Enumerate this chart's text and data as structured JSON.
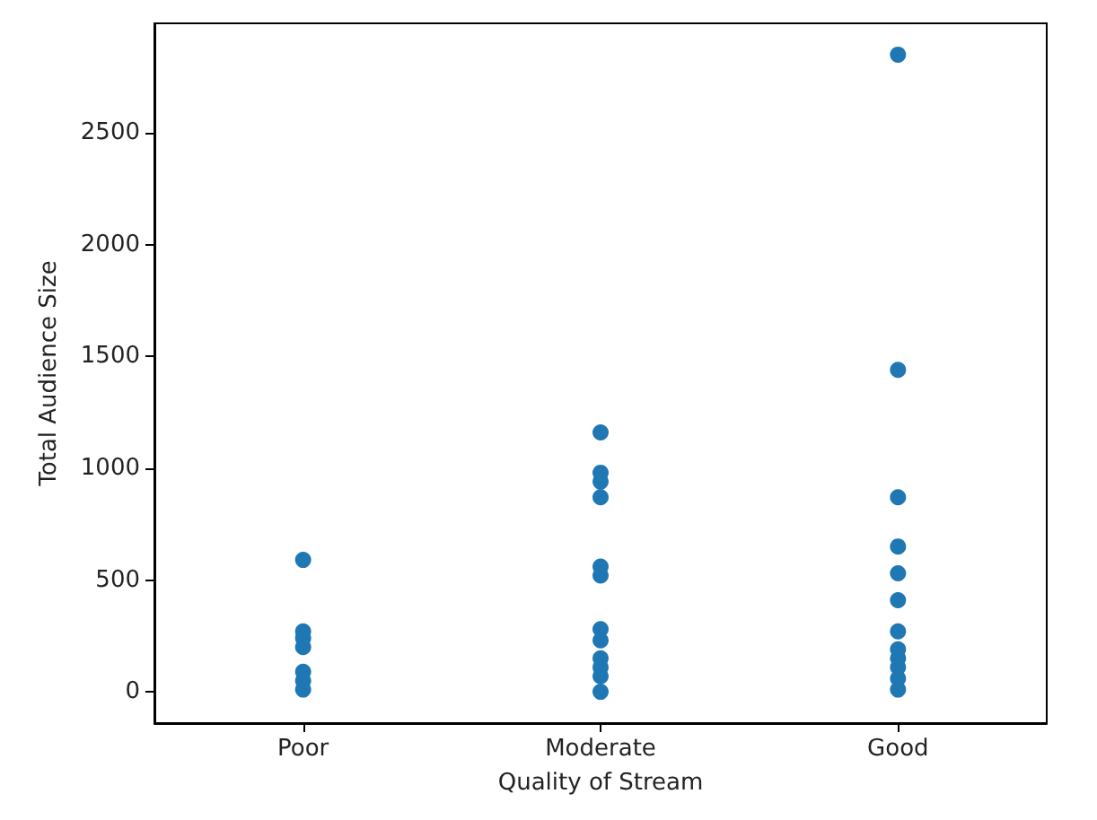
{
  "chart_data": {
    "type": "scatter",
    "xlabel": "Quality of Stream",
    "ylabel": "Total Audience Size",
    "categories": [
      "Poor",
      "Moderate",
      "Good"
    ],
    "series": [
      {
        "color": "#1f77b4",
        "x": [
          "Poor",
          "Poor",
          "Poor",
          "Poor",
          "Poor",
          "Poor",
          "Poor",
          "Moderate",
          "Moderate",
          "Moderate",
          "Moderate",
          "Moderate",
          "Moderate",
          "Moderate",
          "Moderate",
          "Moderate",
          "Moderate",
          "Moderate",
          "Moderate",
          "Moderate",
          "Moderate",
          "Moderate",
          "Good",
          "Good",
          "Good",
          "Good",
          "Good",
          "Good",
          "Good",
          "Good",
          "Good",
          "Good",
          "Good",
          "Good",
          "Good"
        ],
        "values": [
          590,
          270,
          240,
          200,
          90,
          50,
          10,
          1160,
          980,
          940,
          null,
          870,
          560,
          520,
          280,
          null,
          230,
          150,
          110,
          70,
          null,
          0,
          2850,
          1440,
          870,
          650,
          530,
          null,
          410,
          270,
          190,
          150,
          110,
          60,
          10
        ]
      }
    ],
    "ylim": [
      -140,
      2990
    ],
    "yticks": [
      0,
      500,
      1000,
      1500,
      2000,
      2500
    ],
    "grid": false,
    "marker": "circle"
  }
}
